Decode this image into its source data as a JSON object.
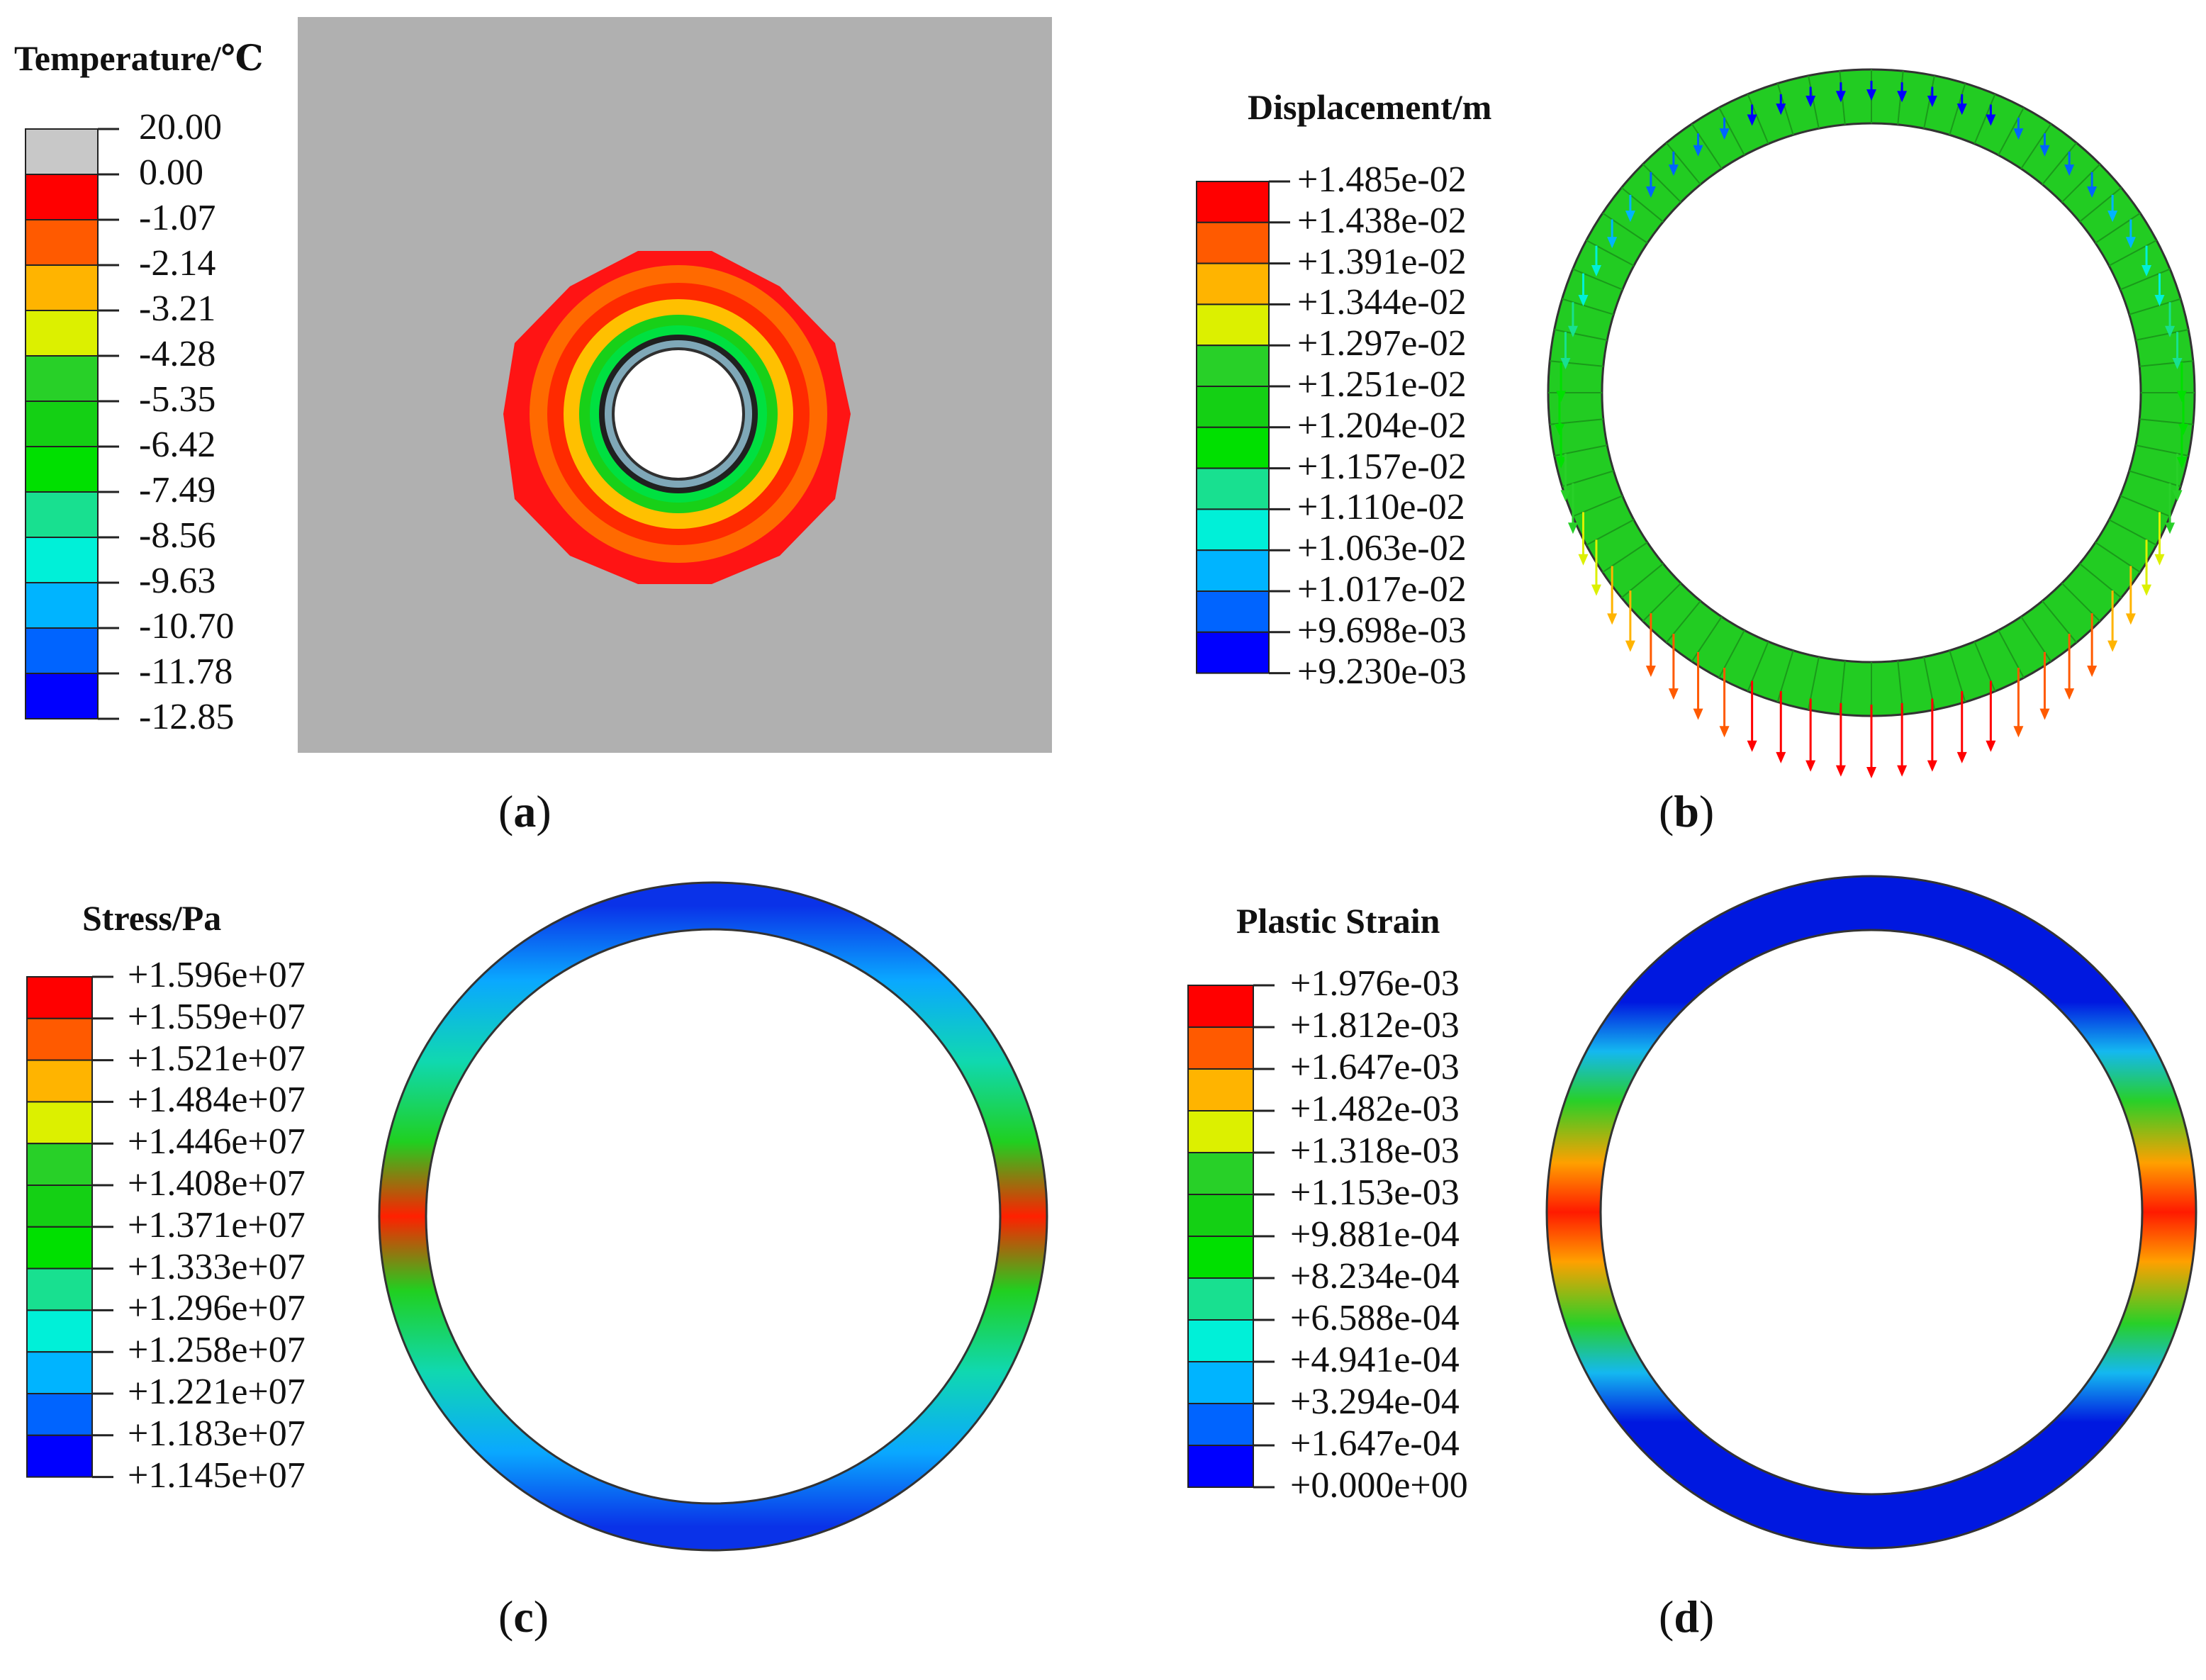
{
  "panels": {
    "a": {
      "legend_title": "Temperature/℃",
      "legend_values": [
        "20.00",
        "0.00",
        "-1.07",
        "-2.14",
        "-3.21",
        "-4.28",
        "-5.35",
        "-6.42",
        "-7.49",
        "-8.56",
        "-9.63",
        "-10.70",
        "-11.78",
        "-12.85"
      ],
      "colors": [
        "#c8c8c8",
        "#ff0000",
        "#ff5a00",
        "#ffb400",
        "#dcf000",
        "#28d028",
        "#14d014",
        "#00e000",
        "#18e090",
        "#00f0d8",
        "#00b4ff",
        "#0064ff",
        "#0000ff"
      ],
      "caption_open": "(",
      "caption_letter": "a",
      "caption_close": ")"
    },
    "b": {
      "legend_title": "Displacement/m",
      "legend_values": [
        "+1.485e-02",
        "+1.438e-02",
        "+1.391e-02",
        "+1.344e-02",
        "+1.297e-02",
        "+1.251e-02",
        "+1.204e-02",
        "+1.157e-02",
        "+1.110e-02",
        "+1.063e-02",
        "+1.017e-02",
        "+9.698e-03",
        "+9.230e-03"
      ],
      "colors": [
        "#ff0000",
        "#ff5a00",
        "#ffb400",
        "#dcf000",
        "#28d028",
        "#14d014",
        "#00e000",
        "#18e090",
        "#00f0d8",
        "#00b4ff",
        "#0064ff",
        "#0000ff"
      ],
      "caption_open": "(",
      "caption_letter": "b",
      "caption_close": ")"
    },
    "c": {
      "legend_title": "Stress/Pa",
      "legend_values": [
        "+1.596e+07",
        "+1.559e+07",
        "+1.521e+07",
        "+1.484e+07",
        "+1.446e+07",
        "+1.408e+07",
        "+1.371e+07",
        "+1.333e+07",
        "+1.296e+07",
        "+1.258e+07",
        "+1.221e+07",
        "+1.183e+07",
        "+1.145e+07"
      ],
      "colors": [
        "#ff0000",
        "#ff5a00",
        "#ffb400",
        "#dcf000",
        "#28d028",
        "#14d014",
        "#00e000",
        "#18e090",
        "#00f0d8",
        "#00b4ff",
        "#0064ff",
        "#0000ff"
      ],
      "caption_open": "(",
      "caption_letter": "c",
      "caption_close": ")"
    },
    "d": {
      "legend_title": "Plastic Strain",
      "legend_values": [
        "+1.976e-03",
        "+1.812e-03",
        "+1.647e-03",
        "+1.482e-03",
        "+1.318e-03",
        "+1.153e-03",
        "+9.881e-04",
        "+8.234e-04",
        "+6.588e-04",
        "+4.941e-04",
        "+3.294e-04",
        "+1.647e-04",
        "+0.000e+00"
      ],
      "colors": [
        "#ff0000",
        "#ff5a00",
        "#ffb400",
        "#dcf000",
        "#28d028",
        "#14d014",
        "#00e000",
        "#18e090",
        "#00f0d8",
        "#00b4ff",
        "#0064ff",
        "#0000ff"
      ],
      "caption_open": "(",
      "caption_letter": "d",
      "caption_close": ")"
    }
  }
}
